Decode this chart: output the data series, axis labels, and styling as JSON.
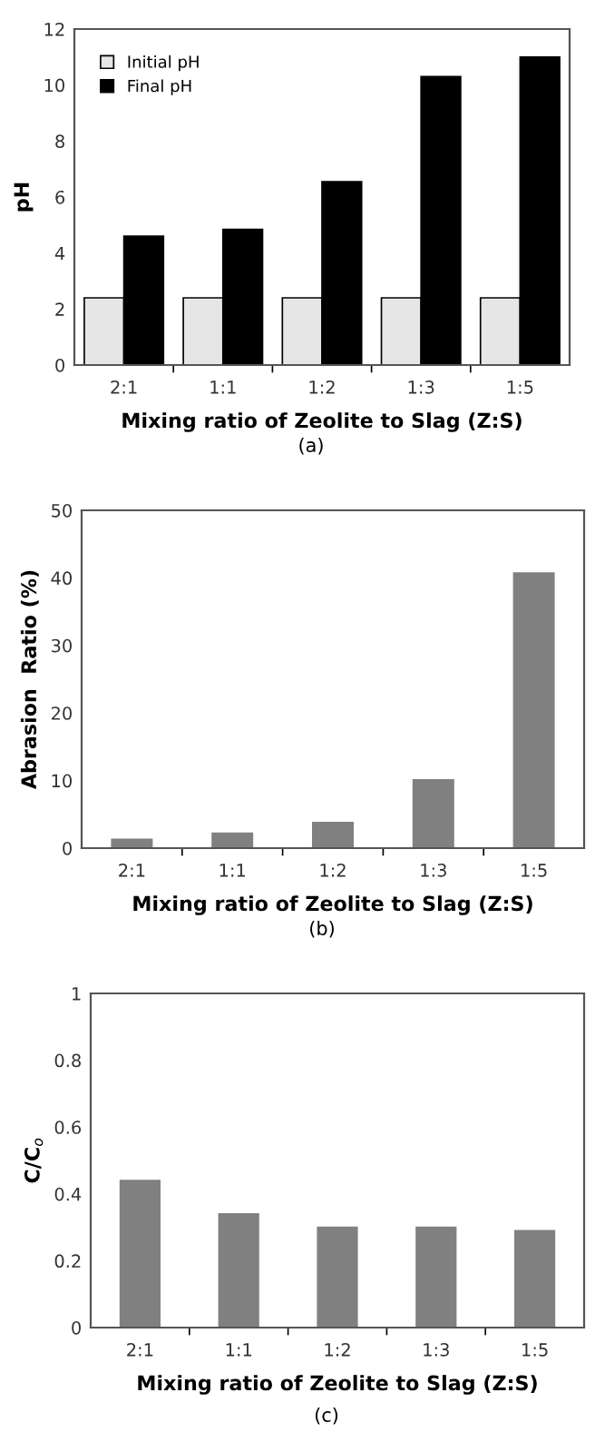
{
  "chart_data": [
    {
      "type": "bar",
      "categories": [
        "2:1",
        "1:1",
        "1:2",
        "1:3",
        "1:5"
      ],
      "xlabel": "Mixing ratio of Zeolite to Slag (Z:S)",
      "ylabel": "pH",
      "ylim": [
        0,
        12
      ],
      "yticks": [
        0,
        2,
        4,
        6,
        8,
        10,
        12
      ],
      "legend": "top left",
      "grid": false,
      "annotations": [
        "(a)"
      ],
      "series": [
        {
          "name": "Initial pH",
          "color": "#e6e6e6",
          "values": [
            2.4,
            2.4,
            2.4,
            2.4,
            2.4
          ]
        },
        {
          "name": "Final pH",
          "color": "#000000",
          "values": [
            4.6,
            4.85,
            6.55,
            10.3,
            11.0
          ]
        }
      ]
    },
    {
      "type": "bar",
      "categories": [
        "2:1",
        "1:1",
        "1:2",
        "1:3",
        "1:5"
      ],
      "xlabel": "Mixing ratio of Zeolite to Slag (Z:S)",
      "ylabel": "Abrasion  Ratio (%)",
      "ylim": [
        0,
        50
      ],
      "yticks": [
        0,
        10,
        20,
        30,
        40,
        50
      ],
      "grid": false,
      "annotations": [
        "(b)"
      ],
      "series": [
        {
          "color": "#808080",
          "values": [
            1.3,
            2.2,
            3.8,
            10.1,
            40.7
          ]
        }
      ]
    },
    {
      "type": "bar",
      "categories": [
        "2:1",
        "1:1",
        "1:2",
        "1:3",
        "1:5"
      ],
      "xlabel": "Mixing ratio of Zeolite to Slag (Z:S)",
      "ylabel": "C/C$_{o}$",
      "ylim": [
        0,
        1
      ],
      "yticks": [
        0,
        0.2,
        0.4,
        0.6,
        0.8,
        1
      ],
      "grid": false,
      "annotations": [
        "(c)"
      ],
      "series": [
        {
          "color": "#808080",
          "values": [
            0.44,
            0.34,
            0.3,
            0.3,
            0.29
          ]
        }
      ]
    }
  ]
}
